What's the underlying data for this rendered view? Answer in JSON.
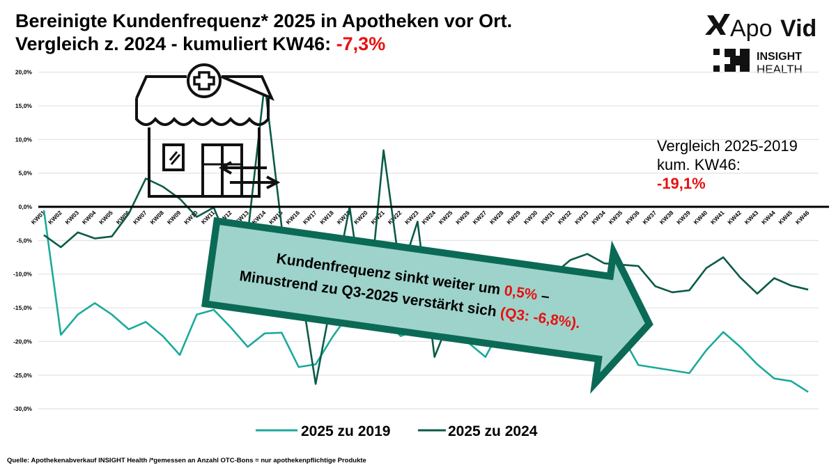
{
  "title": {
    "line1": "Bereinigte Kundenfrequenz* 2025 in Apotheken vor Ort.",
    "line2_prefix": "Vergleich z. 2024 - kumuliert KW46: ",
    "line2_value": "-7,3%"
  },
  "logos": {
    "apovid_light": "Apo",
    "apovid_bold": "Vid",
    "insight": "INSIGHT",
    "health": "HEALTH"
  },
  "comparison": {
    "line1": "Vergleich 2025-2019",
    "line2": "kum. KW46:",
    "value": "-19,1%"
  },
  "callout": {
    "line1_prefix": "Kundenfrequenz sinkt weiter um ",
    "line1_value": "0,5%",
    "line1_suffix": " –",
    "line2_prefix": "Minustrend zu Q3-2025 verstärkt sich ",
    "line2_value": "(Q3: -6,8%)."
  },
  "source": "Quelle: Apothekenabverkauf INSIGHT Health /*gemessen an Anzahl OTC-Bons = nur apothekenpflichtige Produkte",
  "icon": "pharmacy-storefront-icon",
  "colors": {
    "series_2019": "#1aaa9b",
    "series_2024": "#0b5a48",
    "highlight": "#e8100f",
    "callout_fill": "#9ed3cb",
    "callout_border": "#0b6a55"
  },
  "chart_data": {
    "type": "line",
    "ylim": [
      -30,
      20
    ],
    "yticks": [
      "20,0%",
      "15,0%",
      "10,0%",
      "5,0%",
      "0,0%",
      "-5,0%",
      "-10,0%",
      "-15,0%",
      "-20,0%",
      "-25,0%",
      "-30,0%"
    ],
    "ytick_values": [
      20,
      15,
      10,
      5,
      0,
      -5,
      -10,
      -15,
      -20,
      -25,
      -30
    ],
    "grid": true,
    "legend": "bottom",
    "categories": [
      "KW01",
      "KW02",
      "KW03",
      "KW04",
      "KW05",
      "KW06",
      "KW07",
      "KW08",
      "KW09",
      "KW10",
      "KW11",
      "KW12",
      "KW13",
      "KW14",
      "KW15",
      "KW16",
      "KW17",
      "KW18",
      "KW19",
      "KW20",
      "KW21",
      "KW22",
      "KW23",
      "KW24",
      "KW25",
      "KW26",
      "KW27",
      "KW28",
      "KW29",
      "KW30",
      "KW31",
      "KW32",
      "KW33",
      "KW34",
      "KW35",
      "KW36",
      "KW37",
      "KW38",
      "KW39",
      "KW40",
      "KW41",
      "KW42",
      "KW43",
      "KW44",
      "KW45",
      "KW46"
    ],
    "series": [
      {
        "name": "2025 zu 2019",
        "values": [
          -0.5,
          -19,
          -16,
          -14.3,
          -16,
          -18.2,
          -17.1,
          -19.2,
          -22,
          -16,
          -15.3,
          -17.9,
          -20.8,
          -18.8,
          -18.7,
          -23.8,
          -23.4,
          -19.3,
          -15.8,
          -16.5,
          -16.5,
          -19.2,
          -18.3,
          -19.2,
          -19.3,
          -20.2,
          -22.3,
          -17.5,
          -18,
          -18.5,
          -18,
          -17.5,
          -18,
          -18.5,
          -19,
          -23.5,
          -23.9,
          -24.3,
          -24.7,
          -21.3,
          -18.6,
          -20.8,
          -23.4,
          -25.5,
          -25.9,
          -27.5
        ]
      },
      {
        "name": "2025 zu 2024",
        "values": [
          -4.2,
          -6,
          -3.8,
          -4.7,
          -4.4,
          -1,
          4.2,
          3,
          1.2,
          -1.5,
          -0.1,
          -6.2,
          -4.1,
          18.3,
          -3,
          -10,
          -26.3,
          -13,
          0,
          -17.4,
          8.4,
          -10,
          -2.2,
          -22.3,
          -16,
          -10.5,
          -11.5,
          -8.5,
          -9.6,
          -12.2,
          -10,
          -7.9,
          -7,
          -8.4,
          -8.6,
          -8.8,
          -11.8,
          -12.7,
          -12.4,
          -9.1,
          -7.5,
          -10.5,
          -12.9,
          -10.6,
          -11.7,
          -12.3
        ]
      }
    ]
  }
}
